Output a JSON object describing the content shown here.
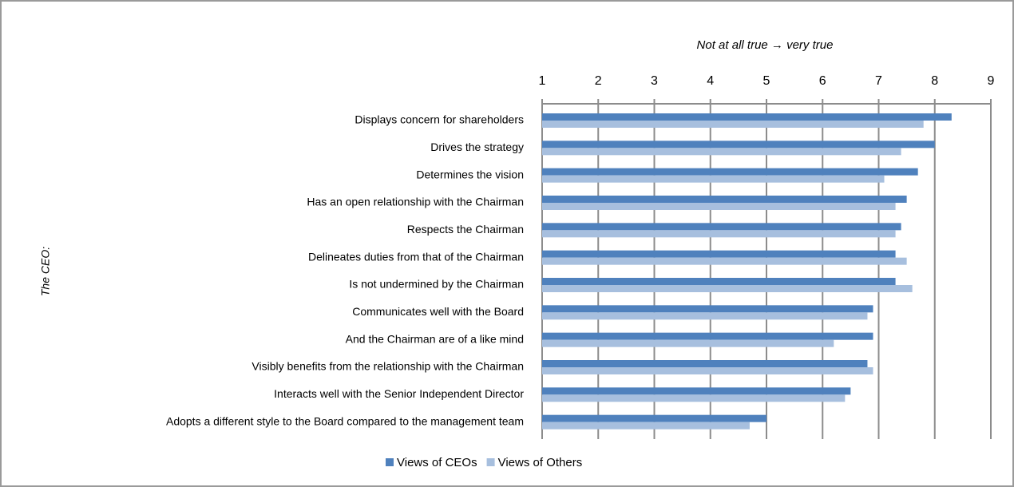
{
  "chart_data": {
    "type": "hbar",
    "x_label": "Not at all true → very true",
    "y_label": "The CEO:",
    "categories": [
      "Displays concern for shareholders",
      "Drives the strategy",
      "Determines the vision",
      "Has an open relationship with the Chairman",
      "Respects the Chairman",
      "Delineates duties from that of the Chairman",
      "Is not undermined by the Chairman",
      "Communicates well with the Board",
      "And the Chairman are of a like mind",
      "Visibly benefits from the relationship with the Chairman",
      "Interacts well with the Senior Independent Director",
      "Adopts a different style to the Board compared to the management team"
    ],
    "series": [
      {
        "name": "Views of CEOs",
        "color": "#4f81bd",
        "values": [
          8.3,
          8.0,
          7.7,
          7.5,
          7.4,
          7.3,
          7.3,
          6.9,
          6.9,
          6.8,
          6.5,
          5.0
        ]
      },
      {
        "name": "Views of Others",
        "color": "#a7bfde",
        "values": [
          7.8,
          7.4,
          7.1,
          7.3,
          7.3,
          7.5,
          7.6,
          6.8,
          6.2,
          6.9,
          6.4,
          4.7
        ]
      }
    ],
    "xlim": [
      1,
      9
    ],
    "xticks": [
      1,
      2,
      3,
      4,
      5,
      6,
      7,
      8,
      9
    ],
    "grid": true,
    "legend": "bottom"
  }
}
